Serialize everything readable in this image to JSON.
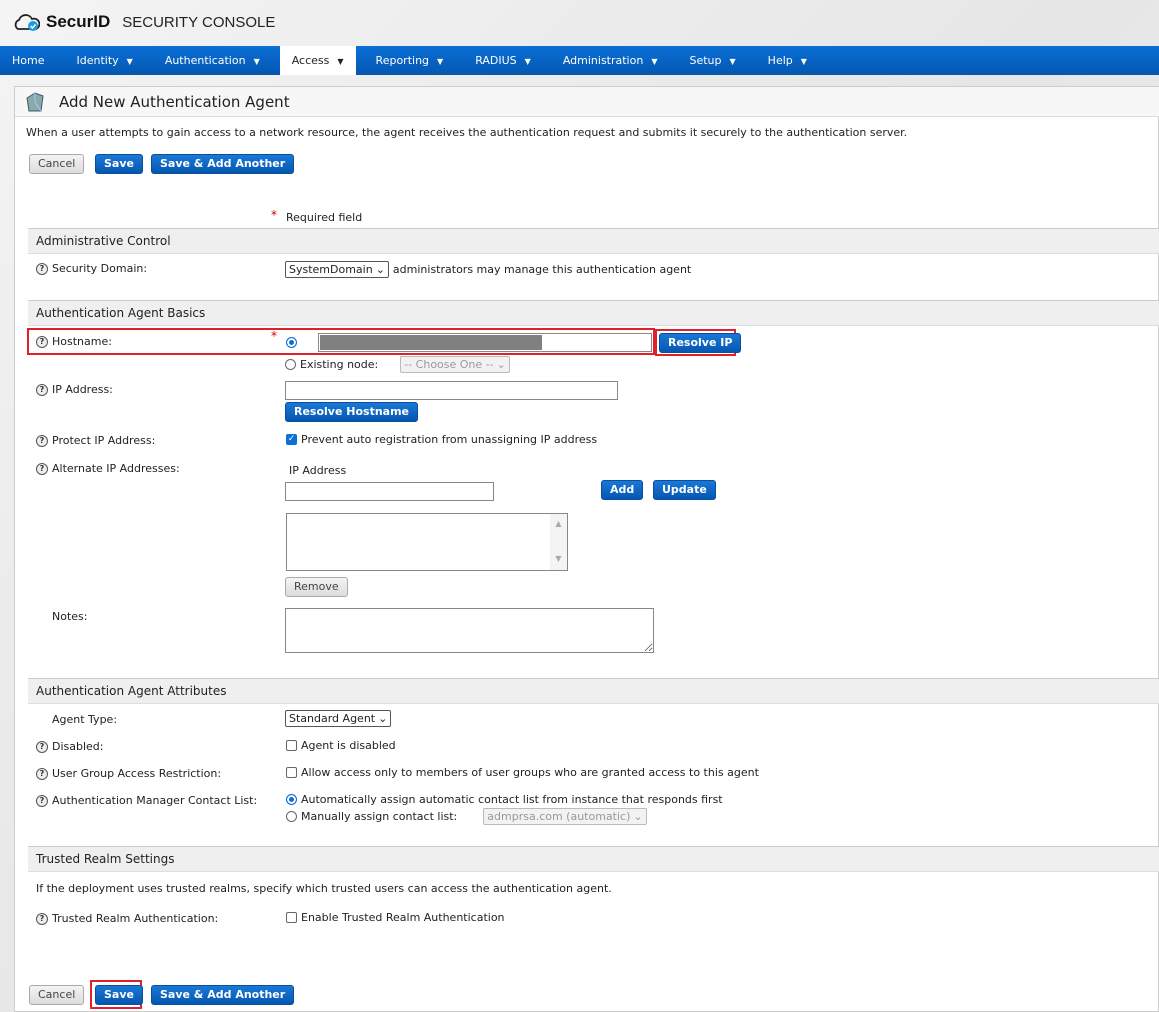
{
  "header": {
    "brand": "SecurID",
    "product": "SECURITY CONSOLE"
  },
  "nav": [
    {
      "label": "Home",
      "caret": false
    },
    {
      "label": "Identity",
      "caret": true
    },
    {
      "label": "Authentication",
      "caret": true
    },
    {
      "label": "Access",
      "caret": true,
      "active": true
    },
    {
      "label": "Reporting",
      "caret": true
    },
    {
      "label": "RADIUS",
      "caret": true
    },
    {
      "label": "Administration",
      "caret": true
    },
    {
      "label": "Setup",
      "caret": true
    },
    {
      "label": "Help",
      "caret": true
    }
  ],
  "page": {
    "title": "Add New Authentication Agent",
    "description": "When a user attempts to gain access to a network resource, the agent receives the authentication request and submits it securely to the authentication server.",
    "required_note": "Required field"
  },
  "buttons": {
    "cancel": "Cancel",
    "save": "Save",
    "save_add": "Save & Add Another",
    "resolve_ip": "Resolve IP",
    "resolve_hostname": "Resolve Hostname",
    "add": "Add",
    "update": "Update",
    "remove": "Remove"
  },
  "sections": {
    "admin": {
      "title": "Administrative Control",
      "security_domain_label": "Security Domain:",
      "security_domain_value": "SystemDomain",
      "security_domain_suffix": "administrators may manage this authentication agent"
    },
    "basics": {
      "title": "Authentication Agent Basics",
      "hostname_label": "Hostname:",
      "existing_node_label": "Existing node:",
      "existing_node_value": "-- Choose One --",
      "ip_label": "IP Address:",
      "protect_label": "Protect IP Address:",
      "protect_text": "Prevent auto registration from unassigning IP address",
      "protect_checked": true,
      "alt_label": "Alternate IP Addresses:",
      "alt_col": "IP Address",
      "notes_label": "Notes:"
    },
    "attrs": {
      "title": "Authentication Agent Attributes",
      "agent_type_label": "Agent Type:",
      "agent_type_value": "Standard Agent",
      "disabled_label": "Disabled:",
      "disabled_text": "Agent is disabled",
      "ugar_label": "User Group Access Restriction:",
      "ugar_text": "Allow access only to members of user groups who are granted access to this agent",
      "contact_label": "Authentication Manager Contact List:",
      "contact_auto": "Automatically assign automatic contact list from instance that responds first",
      "contact_manual": "Manually assign contact list:",
      "contact_manual_value": "admprsa.com (automatic)"
    },
    "realm": {
      "title": "Trusted Realm Settings",
      "description": "If the deployment uses trusted realms, specify which trusted users can access the authentication agent.",
      "label": "Trusted Realm Authentication:",
      "text": "Enable Trusted Realm Authentication"
    }
  },
  "colors": {
    "nav": "#0a6fd6",
    "highlight": "#e0202a"
  }
}
